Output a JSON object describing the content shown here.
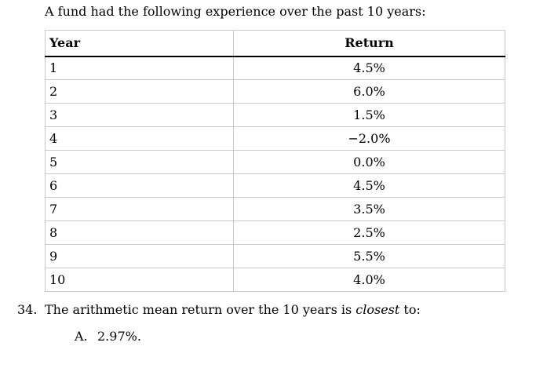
{
  "intro": "A fund had the following experience over the past 10 years:",
  "table": {
    "headers": [
      "Year",
      "Return"
    ],
    "rows": [
      {
        "year": "1",
        "return": "4.5%"
      },
      {
        "year": "2",
        "return": "6.0%"
      },
      {
        "year": "3",
        "return": "1.5%"
      },
      {
        "year": "4",
        "return": "−2.0%"
      },
      {
        "year": "5",
        "return": "0.0%"
      },
      {
        "year": "6",
        "return": "4.5%"
      },
      {
        "year": "7",
        "return": "3.5%"
      },
      {
        "year": "8",
        "return": "2.5%"
      },
      {
        "year": "9",
        "return": "5.5%"
      },
      {
        "year": "10",
        "return": "4.0%"
      }
    ]
  },
  "question": {
    "number": "34.",
    "text_before_italic": "The arithmetic mean return over the 10 years is ",
    "italic_word": "closest",
    "text_after_italic": " to:",
    "option_a_label": "A.",
    "option_a_value": "2.97%."
  },
  "colors": {
    "background": "#ffffff",
    "text": "#000000",
    "table_border": "#c9c9c9",
    "header_rule": "#000000"
  }
}
